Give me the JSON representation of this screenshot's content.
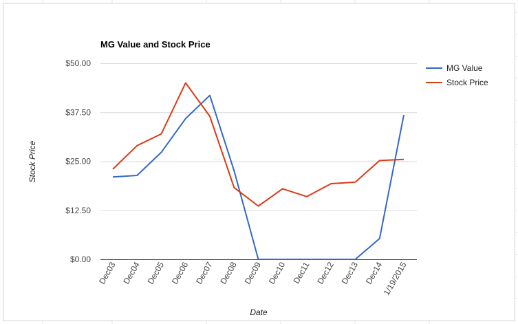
{
  "chart_data": {
    "type": "line",
    "title": "MG Value and Stock Price",
    "xlabel": "Date",
    "ylabel": "Stock Price",
    "categories": [
      "Dec03",
      "Dec04",
      "Dec05",
      "Dec06",
      "Dec07",
      "Dec08",
      "Dec09",
      "Dec10",
      "Dec11",
      "Dec12",
      "Dec13",
      "Dec14",
      "1/19/2015"
    ],
    "y_ticks": [
      "$0.00",
      "$12.50",
      "$25.00",
      "$37.50",
      "$50.00"
    ],
    "ylim": [
      0,
      50
    ],
    "grid": true,
    "legend_position": "top-right",
    "series": [
      {
        "name": "MG Value",
        "color": "#3366cc",
        "values": [
          {
            "x": 0,
            "y": 21.0
          },
          {
            "x": 1,
            "y": 21.4
          },
          {
            "x": 2,
            "y": 27.3
          },
          {
            "x": 3,
            "y": 35.9
          },
          {
            "x": 4,
            "y": 41.8
          },
          {
            "x": 5,
            "y": 22.6
          },
          {
            "x": 6,
            "y": 0
          },
          {
            "x": 7,
            "y": 0
          },
          {
            "x": 8,
            "y": 0
          },
          {
            "x": 9,
            "y": 0
          },
          {
            "x": 10,
            "y": 0
          },
          {
            "x": 11,
            "y": 5.3
          },
          {
            "x": 12,
            "y": 36.8
          }
        ]
      },
      {
        "name": "Stock Price",
        "color": "#dc3912",
        "values": [
          {
            "x": 0,
            "y": 23.0
          },
          {
            "x": 1,
            "y": 29.0
          },
          {
            "x": 2,
            "y": 32.0
          },
          {
            "x": 3,
            "y": 45.0
          },
          {
            "x": 4,
            "y": 36.5
          },
          {
            "x": 5,
            "y": 18.3
          },
          {
            "x": 6,
            "y": 13.6
          },
          {
            "x": 7,
            "y": 18.0
          },
          {
            "x": 8,
            "y": 16.0
          },
          {
            "x": 9,
            "y": 19.3
          },
          {
            "x": 10,
            "y": 19.7
          },
          {
            "x": 11,
            "y": 25.2
          },
          {
            "x": 12,
            "y": 25.5
          }
        ]
      }
    ]
  }
}
